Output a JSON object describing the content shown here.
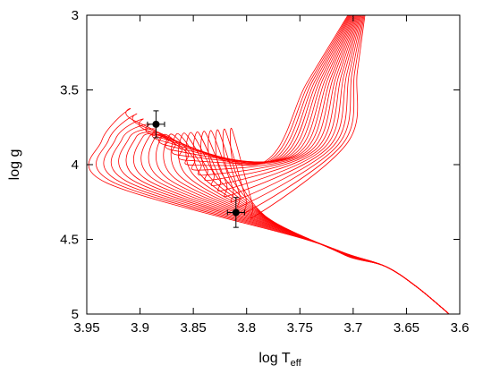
{
  "chart_data": {
    "type": "line",
    "title": "",
    "xlabel": "log T",
    "xlabel_subscript": "eff",
    "ylabel": "log g",
    "xlim": [
      3.95,
      3.6
    ],
    "ylim": [
      5,
      3
    ],
    "x_reversed": true,
    "y_reversed": true,
    "grid": false,
    "legend": "none",
    "x_ticks": [
      "3.95",
      "3.9",
      "3.85",
      "3.8",
      "3.75",
      "3.7",
      "3.65",
      "3.6"
    ],
    "y_ticks": [
      "3",
      "3.5",
      "4",
      "4.5",
      "5"
    ],
    "line_color": "#ff0000",
    "marker_color": "#000000",
    "isochrones": {
      "count": 20,
      "ms_start": [
        [
          3.61,
          5.0
        ],
        [
          3.64,
          4.82
        ],
        [
          3.67,
          4.68
        ]
      ],
      "ms_fan_x": [
        3.703,
        3.712
      ],
      "ms_fan_y": [
        4.62,
        4.58
      ],
      "knee_x": [
        3.745,
        3.778
      ],
      "knee_y": [
        4.5,
        4.37
      ],
      "turnoff_x": [
        3.932,
        3.81
      ],
      "turnoff_y": [
        4.12,
        4.06
      ],
      "turnoff_top_y": [
        3.72,
        3.63
      ],
      "hook_x": [
        3.91,
        3.795
      ],
      "hook_y": [
        3.63,
        4.25
      ],
      "giant_base_x": [
        3.79,
        3.705
      ],
      "giant_base_y": [
        4.0,
        3.85
      ],
      "giant_top_x": [
        3.705,
        3.689
      ],
      "giant_top_y": 3.0
    },
    "points": [
      {
        "x": 3.885,
        "y": 3.73,
        "x_err": 0.008,
        "y_err": 0.09
      },
      {
        "x": 3.81,
        "y": 4.32,
        "x_err": 0.008,
        "y_err": 0.1
      }
    ]
  }
}
